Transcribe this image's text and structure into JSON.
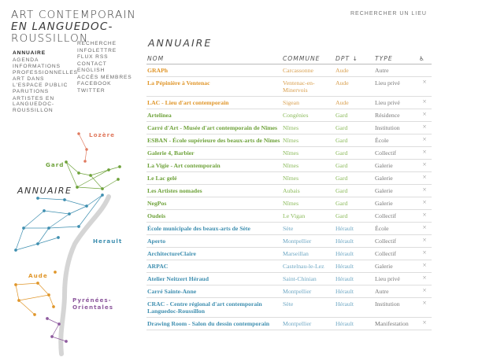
{
  "header": {
    "title_line1": "Art contemporain",
    "title_line2": "en Languedoc-",
    "title_line3": "Roussillon",
    "search_link": "Rechercher un lieu"
  },
  "nav_left": [
    {
      "label": "Annuaire",
      "active": true
    },
    {
      "label": "Agenda"
    },
    {
      "label": "Informations professionnelles"
    },
    {
      "label": "Art dans l'espace public"
    },
    {
      "label": "Parutions"
    },
    {
      "label": "Artistes en Languedoc-Roussillon"
    }
  ],
  "nav_right": [
    "Recherche",
    "Infolettre",
    "Flux RSS",
    "Contact",
    "English",
    "Accès membres",
    "Facebook",
    "Twitter"
  ],
  "map": {
    "heading": "Annuaire",
    "regions": {
      "lozere": "Lozère",
      "gard": "Gard",
      "herault": "Herault",
      "aude": "Aude",
      "pyrenees1": "Pyrénées-",
      "pyrenees2": "Orientales"
    },
    "colors": {
      "lozere": "#e07a5f",
      "gard": "#6ea23a",
      "herault": "#3f8fb0",
      "aude": "#e0962a",
      "pyrenees": "#8e5a9e"
    }
  },
  "main": {
    "title": "Annuaire",
    "columns": {
      "nom": "Nom",
      "commune": "Commune",
      "dpt": "Dpt ↓",
      "type": "Type",
      "access": "♿"
    },
    "rows": [
      {
        "nom": "GRAPh",
        "commune": "Carcassonne",
        "dpt": "Aude",
        "type": "Autre",
        "del": ""
      },
      {
        "nom": "La Pépinière à Ventenac",
        "commune": "Ventenac-en-Minervois",
        "dpt": "Aude",
        "type": "Lieu privé",
        "del": "×"
      },
      {
        "nom": "LAC - Lieu d'art contemporain",
        "commune": "Sigean",
        "dpt": "Aude",
        "type": "Lieu privé",
        "del": "×"
      },
      {
        "nom": "Artelinea",
        "commune": "Congénies",
        "dpt": "Gard",
        "type": "Résidence",
        "del": "×"
      },
      {
        "nom": "Carré d'Art - Musée d'art contemporain de Nîmes",
        "commune": "Nîmes",
        "dpt": "Gard",
        "type": "Institution",
        "del": "×"
      },
      {
        "nom": "ESBAN - École supérieure des beaux-arts de Nîmes",
        "commune": "Nîmes",
        "dpt": "Gard",
        "type": "École",
        "del": "×"
      },
      {
        "nom": "Galerie 4, Barbier",
        "commune": "Nîmes",
        "dpt": "Gard",
        "type": "Collectif",
        "del": "×"
      },
      {
        "nom": "La Vigie - Art contemporain",
        "commune": "Nîmes",
        "dpt": "Gard",
        "type": "Galerie",
        "del": "×"
      },
      {
        "nom": "Le Lac gelé",
        "commune": "Nîmes",
        "dpt": "Gard",
        "type": "Galerie",
        "del": "×"
      },
      {
        "nom": "Les Artistes nomades",
        "commune": "Aubais",
        "dpt": "Gard",
        "type": "Galerie",
        "del": "×"
      },
      {
        "nom": "NegPos",
        "commune": "Nîmes",
        "dpt": "Gard",
        "type": "Galerie",
        "del": "×"
      },
      {
        "nom": "Oudeis",
        "commune": "Le Vigan",
        "dpt": "Gard",
        "type": "Collectif",
        "del": "×"
      },
      {
        "nom": "École municipale des beaux-arts de Sète",
        "commune": "Sète",
        "dpt": "Hérault",
        "type": "École",
        "del": "×"
      },
      {
        "nom": "Aperto",
        "commune": "Montpellier",
        "dpt": "Hérault",
        "type": "Collectif",
        "del": "×"
      },
      {
        "nom": "ArchitectureClaire",
        "commune": "Marseillan",
        "dpt": "Hérault",
        "type": "Collectif",
        "del": "×"
      },
      {
        "nom": "ARPAC",
        "commune": "Castelnau-le-Lez",
        "dpt": "Hérault",
        "type": "Galerie",
        "del": "×"
      },
      {
        "nom": "Atelier Neitzert Héraud",
        "commune": "Saint-Chinian",
        "dpt": "Hérault",
        "type": "Lieu privé",
        "del": "×"
      },
      {
        "nom": "Carré Sainte-Anne",
        "commune": "Montpellier",
        "dpt": "Hérault",
        "type": "Autre",
        "del": "×"
      },
      {
        "nom": "CRAC - Centre régional d'art contemporain Languedoc-Roussillon",
        "commune": "Sète",
        "dpt": "Hérault",
        "type": "Institution",
        "del": "×"
      },
      {
        "nom": "Drawing Room - Salon du dessin contemporain",
        "commune": "Montpellier",
        "dpt": "Hérault",
        "type": "Manifestation",
        "del": "×"
      }
    ]
  }
}
